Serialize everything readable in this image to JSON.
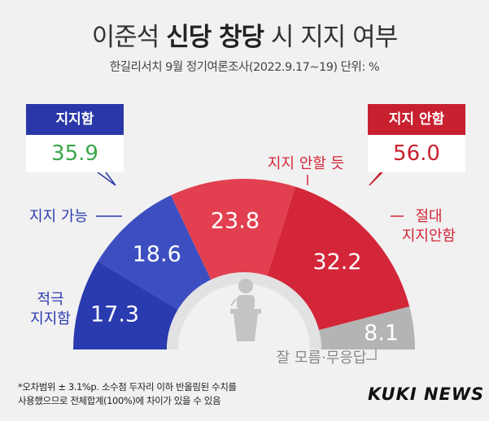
{
  "title_pre": "이준석 ",
  "title_bold": "신당 창당",
  "title_post": " 시 지지 여부",
  "subtitle": "한길리서치 9월 정기여론조사(2022.9.17~19) 단위: %",
  "support_box": {
    "label": "지지함",
    "value": "35.9"
  },
  "oppose_box": {
    "label": "지지 안함",
    "value": "56.0"
  },
  "footnote_line1": "*오차범위 ± 3.1%p. 소수점 두자리 이하 반올림된 수치를",
  "footnote_line2": "사용했으므로 전체합계(100%)에 차이가 있을 수 있음",
  "brand": "KUKI NEWS",
  "colors": {
    "blue_dark": "#2a3bb0",
    "blue_light": "#3d4fc0",
    "red_light": "#e24050",
    "red_dark": "#d32638",
    "gray": "#b4b4b4",
    "box_blue": "#2a37a8",
    "box_red": "#c8202f"
  },
  "chart_data": {
    "type": "pie",
    "title": "이준석 신당 창당 시 지지 여부",
    "unit": "%",
    "slices": [
      {
        "label_lines": [
          "적극",
          "지지함"
        ],
        "value": 17.3,
        "value_text": "17.3",
        "color": "#2a3bb0",
        "label_color": "#2a3bb0"
      },
      {
        "label_lines": [
          "지지 가능"
        ],
        "value": 18.6,
        "value_text": "18.6",
        "color": "#3d4fc0",
        "label_color": "#2a3bb0"
      },
      {
        "label_lines": [
          "지지 안할 듯"
        ],
        "value": 23.8,
        "value_text": "23.8",
        "color": "#e24050",
        "label_color": "#d32638"
      },
      {
        "label_lines": [
          "절대",
          "지지안함"
        ],
        "value": 32.2,
        "value_text": "32.2",
        "color": "#d32638",
        "label_color": "#d32638"
      },
      {
        "label_lines": [
          "잘 모름·무응답"
        ],
        "value": 8.1,
        "value_text": "8.1",
        "color": "#b4b4b4",
        "label_color": "#888888"
      }
    ]
  }
}
